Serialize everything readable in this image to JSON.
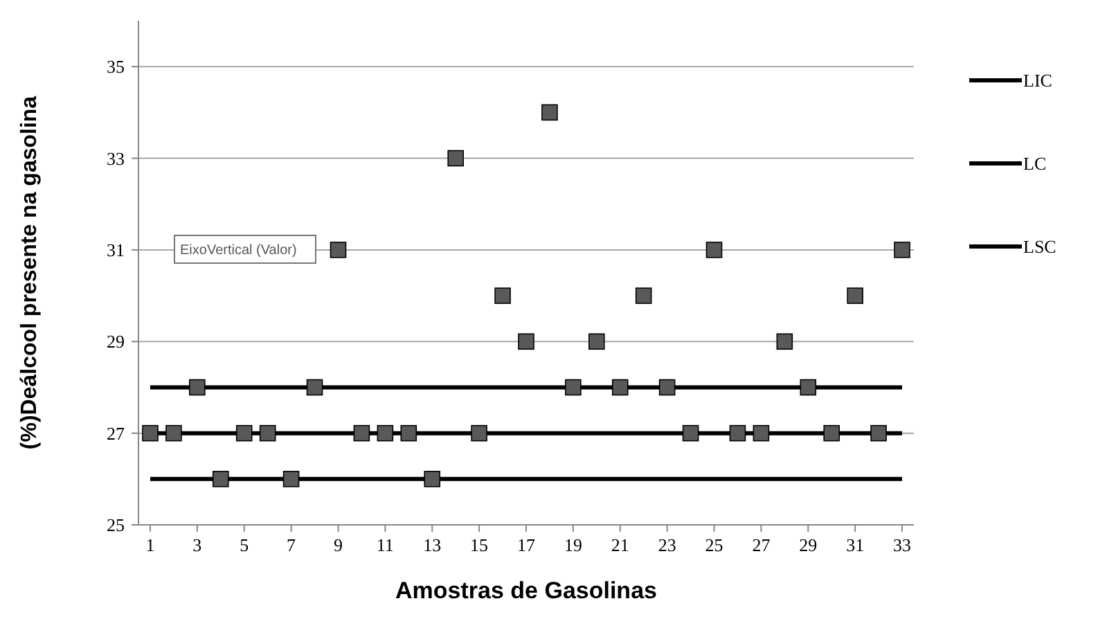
{
  "chart_data": {
    "type": "scatter",
    "xlabel": "Amostras de Gasolinas",
    "ylabel": "(%)Deálcool presente na gasolina",
    "x": [
      1,
      2,
      3,
      4,
      5,
      6,
      7,
      8,
      9,
      10,
      11,
      12,
      13,
      14,
      15,
      16,
      17,
      18,
      19,
      20,
      21,
      22,
      23,
      24,
      25,
      26,
      27,
      28,
      29,
      30,
      31,
      32,
      33
    ],
    "series": [
      {
        "color": "#595959",
        "marker": "square",
        "values": [
          27,
          27,
          28,
          26,
          27,
          27,
          26,
          28,
          31,
          27,
          27,
          27,
          26,
          33,
          27,
          30,
          29,
          34,
          28,
          29,
          28,
          30,
          28,
          27,
          31,
          27,
          27,
          29,
          28,
          27,
          30,
          27,
          31
        ]
      },
      {
        "type": "line",
        "name": "LIC",
        "color": "#000000",
        "values": [
          26,
          26,
          26,
          26,
          26,
          26,
          26,
          26,
          26,
          26,
          26,
          26,
          26,
          26,
          26,
          26,
          26,
          26,
          26,
          26,
          26,
          26,
          26,
          26,
          26,
          26,
          26,
          26,
          26,
          26,
          26,
          26,
          26
        ]
      },
      {
        "type": "line",
        "name": "LC",
        "color": "#000000",
        "values": [
          27,
          27,
          27,
          27,
          27,
          27,
          27,
          27,
          27,
          27,
          27,
          27,
          27,
          27,
          27,
          27,
          27,
          27,
          27,
          27,
          27,
          27,
          27,
          27,
          27,
          27,
          27,
          27,
          27,
          27,
          27,
          27,
          27
        ]
      },
      {
        "type": "line",
        "name": "LSC",
        "color": "#000000",
        "values": [
          28,
          28,
          28,
          28,
          28,
          28,
          28,
          28,
          28,
          28,
          28,
          28,
          28,
          28,
          28,
          28,
          28,
          28,
          28,
          28,
          28,
          28,
          28,
          28,
          28,
          28,
          28,
          28,
          28,
          28,
          28,
          28,
          28
        ]
      }
    ],
    "xlim": [
      0.5,
      33.5
    ],
    "xticks": [
      1,
      3,
      5,
      7,
      9,
      11,
      13,
      15,
      17,
      19,
      21,
      23,
      25,
      27,
      29,
      31,
      33
    ],
    "ylim": [
      25,
      36
    ],
    "yticks": [
      25,
      27,
      29,
      31,
      33,
      35
    ],
    "grid": "y",
    "legend": "right",
    "line_style": "solid",
    "annotations": [
      "EixoVertical (Valor)"
    ]
  }
}
